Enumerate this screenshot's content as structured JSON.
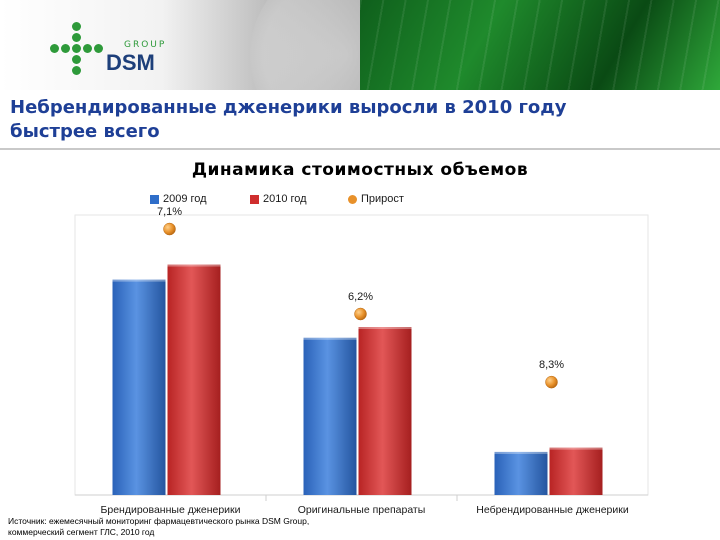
{
  "header": {
    "logo_group_text": "GROUP",
    "logo_brand_text": "DSM"
  },
  "slide": {
    "title_line1": "Небрендированные дженерики выросли в 2010 году",
    "title_line2": "быстрее всего"
  },
  "chart_data": {
    "type": "bar",
    "title": "Динамика стоимостных объемов",
    "categories": [
      "Брендированные дженерики",
      "Оригинальные препараты",
      "Небрендированные дженерики"
    ],
    "series": [
      {
        "name": "2009 год",
        "values": [
          100,
          73,
          20
        ],
        "color": "#2f6ec9"
      },
      {
        "name": "2010 год",
        "values": [
          107,
          78,
          22
        ],
        "color": "#cf2e2e"
      }
    ],
    "growth": {
      "name": "Прирост",
      "values": [
        7.1,
        6.2,
        8.3
      ],
      "labels": [
        "7,1%",
        "6,2%",
        "8,3%"
      ],
      "color": "#e8912a"
    },
    "ylim": [
      0,
      130
    ],
    "legend_position": "top",
    "grid": false
  },
  "footer": {
    "source_line1": "Источник: ежемесячный мониторинг фармацевтического рынка DSM Group,",
    "source_line2": "коммерческий сегмент ГЛС, 2010 год"
  }
}
